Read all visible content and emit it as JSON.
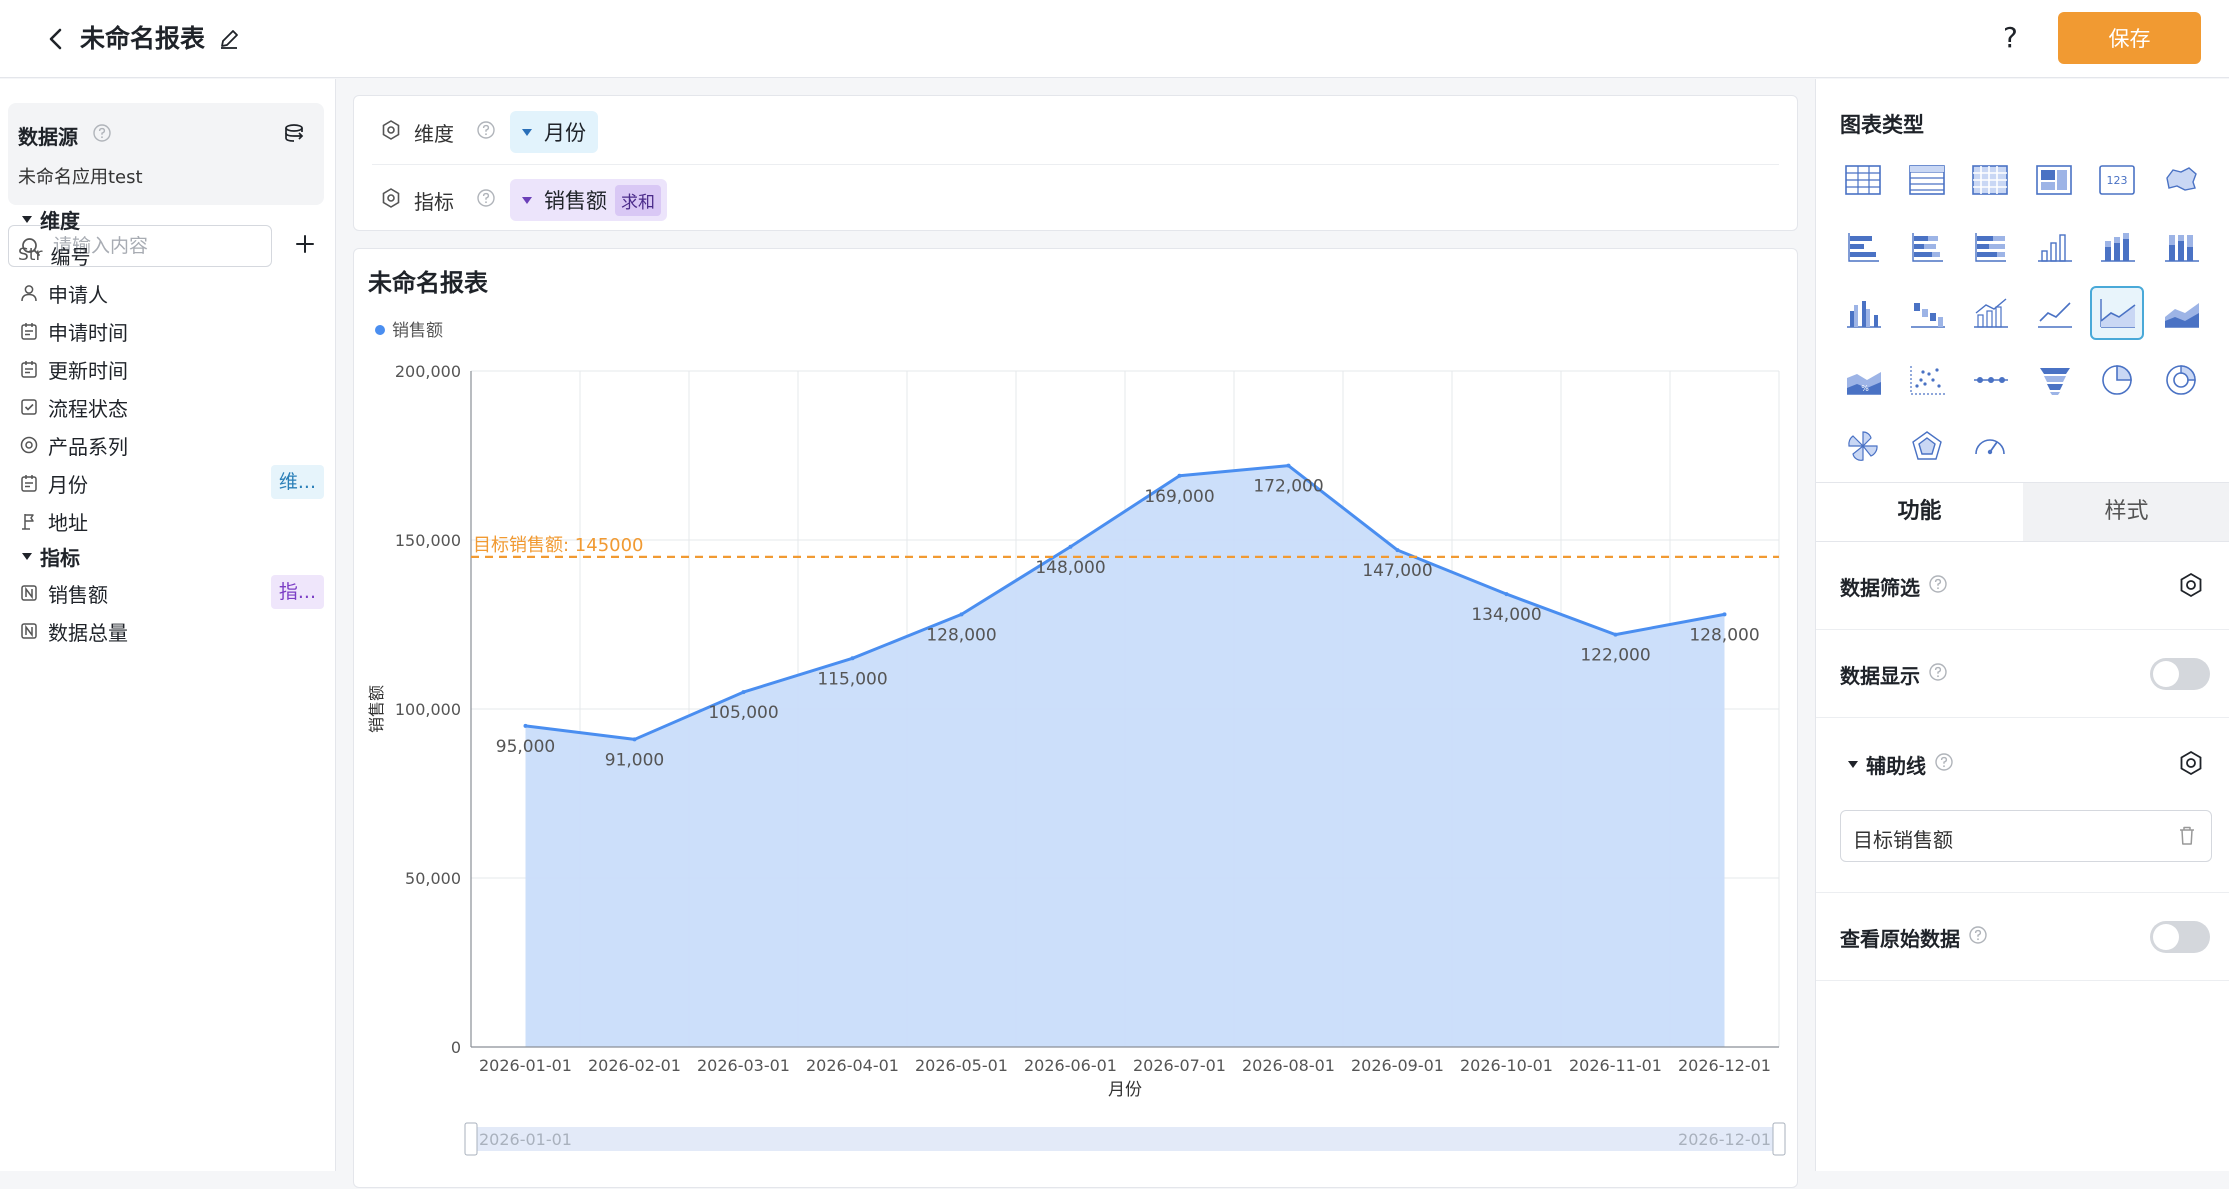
{
  "header": {
    "title": "未命名报表",
    "help_label": "?",
    "save_label": "保存"
  },
  "sidebar": {
    "datasource_title": "数据源",
    "datasource_name": "未命名应用test",
    "search_placeholder": "请输入内容",
    "dimension_section": "维度",
    "indicator_section": "指标",
    "dimensions": [
      {
        "icon": "str-icon",
        "icon_text": "Str",
        "label": "编号"
      },
      {
        "icon": "person-icon",
        "label": "申请人"
      },
      {
        "icon": "calendar-icon",
        "label": "申请时间"
      },
      {
        "icon": "calendar-icon",
        "label": "更新时间"
      },
      {
        "icon": "checkbox-icon",
        "label": "流程状态"
      },
      {
        "icon": "circle-target-icon",
        "label": "产品系列"
      },
      {
        "icon": "calendar-icon",
        "label": "月份",
        "tag": "维..."
      },
      {
        "icon": "location-icon",
        "label": "地址"
      }
    ],
    "indicators": [
      {
        "icon": "number-icon",
        "label": "销售额",
        "tag": "指..."
      },
      {
        "icon": "number-icon",
        "label": "数据总量"
      }
    ]
  },
  "config": {
    "dimension_label": "维度",
    "dimension_value": "月份",
    "indicator_label": "指标",
    "indicator_value": "销售额",
    "indicator_agg": "求和"
  },
  "chart_data": {
    "type": "area",
    "title": "未命名报表",
    "legend": [
      "销售额"
    ],
    "legend_position": "top-left",
    "xlabel": "月份",
    "ylabel": "销售额",
    "ylim": [
      0,
      200000
    ],
    "yticks": [
      "0",
      "50,000",
      "100,000",
      "150,000",
      "200,000"
    ],
    "grid": true,
    "categories": [
      "2026-01-01",
      "2026-02-01",
      "2026-03-01",
      "2026-04-01",
      "2026-05-01",
      "2026-06-01",
      "2026-07-01",
      "2026-08-01",
      "2026-09-01",
      "2026-10-01",
      "2026-11-01",
      "2026-12-01"
    ],
    "series": [
      {
        "name": "销售额",
        "values": [
          95000,
          91000,
          105000,
          115000,
          128000,
          148000,
          169000,
          172000,
          147000,
          134000,
          122000,
          128000
        ]
      }
    ],
    "data_labels": [
      "95,000",
      "91,000",
      "105,000",
      "115,000",
      "128,000",
      "148,000",
      "169,000",
      "172,000",
      "147,000",
      "134,000",
      "122,000",
      "128,000"
    ],
    "reference_line": {
      "label": "目标销售额: 145000",
      "value": 145000
    },
    "slider_start": "2026-01-01",
    "slider_end": "2026-12-01",
    "colors": {
      "line": "#4a8ef0",
      "area": "#c9ddfa",
      "reference": "#f19a32"
    }
  },
  "right_panel": {
    "chart_type_title": "图表类型",
    "tabs": [
      "功能",
      "样式"
    ],
    "data_filter": "数据筛选",
    "data_display": "数据显示",
    "aux_line": "辅助线",
    "aux_item": "目标销售额",
    "raw_data": "查看原始数据"
  }
}
